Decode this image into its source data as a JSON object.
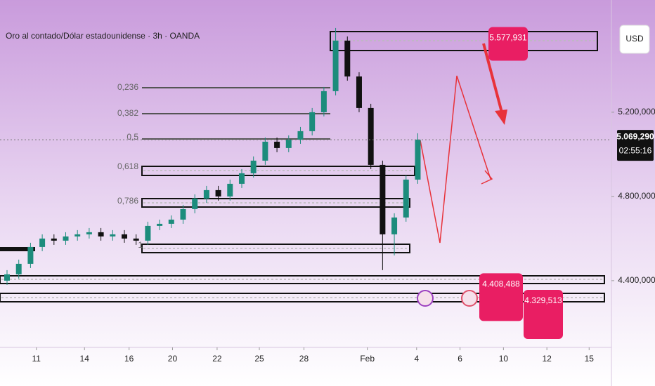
{
  "chart_data": {
    "type": "candlestick",
    "title": "Oro al contado/Dólar estadounidense · 3h · OANDA",
    "currency": "USD",
    "open": [
      4400,
      4430,
      4480,
      4560,
      4600,
      4590,
      4610,
      4620,
      4630,
      4610,
      4620,
      4600,
      4590,
      4660,
      4670,
      4690,
      4740,
      4790,
      4830,
      4800,
      4860,
      4910,
      4970,
      5060,
      5030,
      5070,
      5110,
      5200,
      5300,
      5540,
      5370,
      5220,
      4950,
      4620,
      4700,
      4880
    ],
    "high": [
      4450,
      4500,
      4580,
      4620,
      4620,
      4630,
      4640,
      4650,
      4650,
      4640,
      4640,
      4620,
      4680,
      4690,
      4710,
      4760,
      4810,
      4850,
      4850,
      4880,
      4930,
      4990,
      5080,
      5080,
      5090,
      5130,
      5220,
      5320,
      5600,
      5560,
      5390,
      5240,
      4970,
      4720,
      4900,
      5100
    ],
    "low": [
      4380,
      4410,
      4460,
      4540,
      4570,
      4570,
      4590,
      4600,
      4590,
      4590,
      4580,
      4570,
      4570,
      4640,
      4650,
      4670,
      4720,
      4770,
      4780,
      4780,
      4840,
      4890,
      4950,
      5010,
      5010,
      5050,
      5090,
      5180,
      5280,
      5350,
      5200,
      4930,
      4450,
      4520,
      4680,
      4860
    ],
    "close": [
      4430,
      4480,
      4560,
      4600,
      4590,
      4610,
      4620,
      4630,
      4610,
      4620,
      4600,
      4590,
      4660,
      4670,
      4690,
      4740,
      4790,
      4830,
      4800,
      4860,
      4910,
      4970,
      5060,
      5030,
      5070,
      5110,
      5200,
      5300,
      5540,
      5370,
      5220,
      4950,
      4620,
      4700,
      4880,
      5070
    ],
    "up_color": "#1c8c7c",
    "down_color": "#111111",
    "xlim": [
      -0.3,
      51.5
    ],
    "xticks": [
      {
        "value": 2.5,
        "label": "11"
      },
      {
        "value": 6.6,
        "label": "14"
      },
      {
        "value": 10.4,
        "label": "16"
      },
      {
        "value": 14.1,
        "label": "20"
      },
      {
        "value": 17.9,
        "label": "22"
      },
      {
        "value": 21.5,
        "label": "25"
      },
      {
        "value": 25.3,
        "label": "28"
      },
      {
        "value": 30.7,
        "label": "Feb"
      },
      {
        "value": 34.9,
        "label": "4"
      },
      {
        "value": 38.6,
        "label": "6"
      },
      {
        "value": 42.3,
        "label": "10"
      },
      {
        "value": 46,
        "label": "12"
      },
      {
        "value": 49.6,
        "label": "15"
      }
    ],
    "ylim": [
      4083,
      5733
    ],
    "yticks": [
      {
        "value": 5200,
        "label": "5.200,000"
      },
      {
        "value": 4800,
        "label": "4.800,000"
      },
      {
        "value": 4400,
        "label": "4.400,000"
      }
    ],
    "current_price": {
      "value": 5069.29,
      "label": "5.069,290"
    },
    "countdown": "02:55:16",
    "fib_levels": [
      "0,236",
      "0,382",
      "0,5",
      "0,618",
      "0,786",
      "1"
    ],
    "price_tags": [
      {
        "value": 5577.931,
        "label": "5.577,931"
      },
      {
        "value": 4408.488,
        "label": "4.408,488"
      },
      {
        "value": 4329.513,
        "label": "4.329,513"
      }
    ]
  }
}
